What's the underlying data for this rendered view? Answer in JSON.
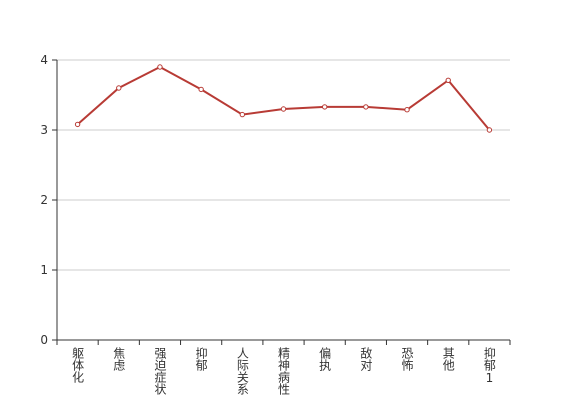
{
  "chart_data": {
    "type": "line",
    "categories": [
      "躯体化",
      "焦虑",
      "强迫症状",
      "抑郁",
      "人际关系",
      "精神病性",
      "偏执",
      "敌对",
      "恐怖",
      "其他",
      "抑郁1"
    ],
    "series": [
      {
        "color": "#b83b35",
        "values": [
          3.08,
          3.6,
          3.9,
          3.58,
          3.22,
          3.3,
          3.33,
          3.33,
          3.29,
          3.71,
          3.0
        ]
      }
    ],
    "ylim": [
      0,
      4
    ],
    "yticks": [
      0,
      1,
      2,
      3,
      4
    ],
    "grid": true
  }
}
